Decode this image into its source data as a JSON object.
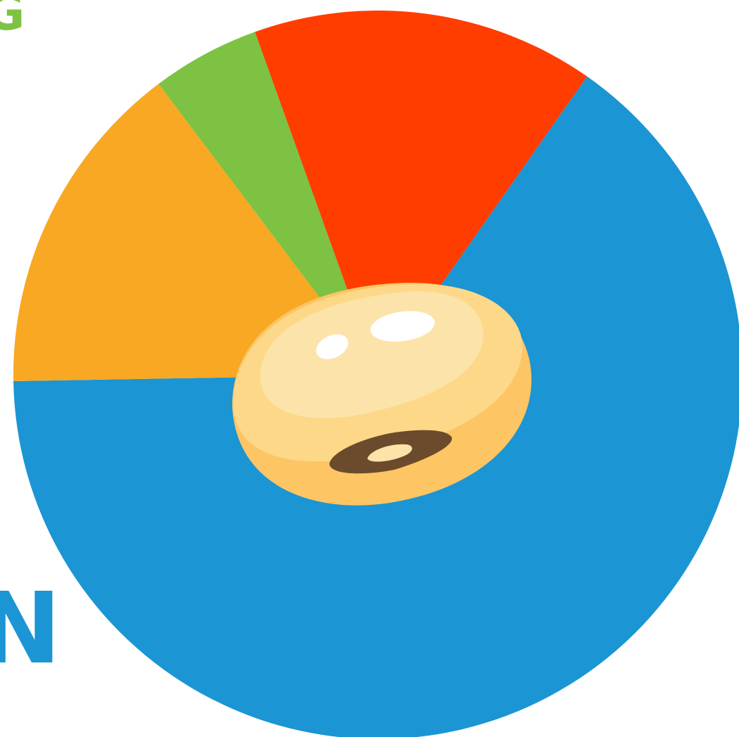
{
  "chart_data": {
    "type": "pie",
    "title": "",
    "series": [
      {
        "values": [
          65,
          15,
          4.8,
          15.2
        ],
        "colors": [
          "#1B95D3",
          "#F8A822",
          "#7DC242",
          "#FF3D00"
        ]
      }
    ],
    "start_angle_deg": 35,
    "direction": "clockwise",
    "legend": "none",
    "center_icon": "soybean-icon"
  },
  "edge_text": {
    "top_left_fragment": "G",
    "bottom_left_fragment": "N",
    "top_left_color": "#7DC242",
    "bottom_left_color": "#1B95D3"
  },
  "colors": {
    "bean_light": "#FCE3A9",
    "bean_mid": "#FDD888",
    "bean_dark": "#FEC564",
    "bean_hilum": "#6B4B2B",
    "highlight": "#FFFFFF"
  }
}
